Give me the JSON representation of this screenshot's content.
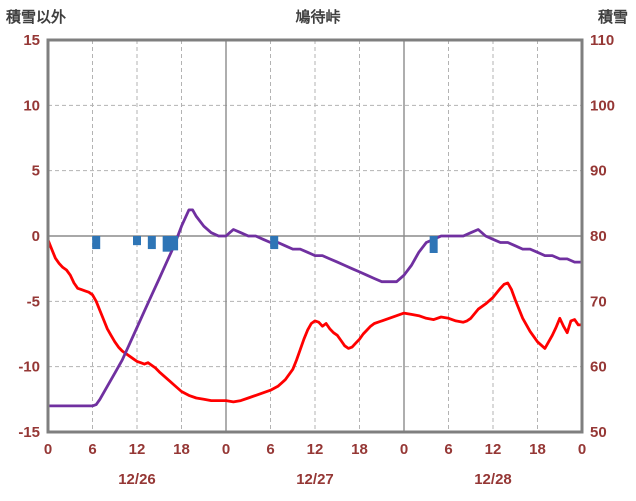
{
  "chart_data": {
    "type": "line",
    "title": "鳩待峠",
    "left_axis": {
      "label": "積雪以外",
      "min": -15,
      "max": 15,
      "ticks": [
        "15",
        "10",
        "5",
        "0",
        "-5",
        "-10",
        "-15"
      ],
      "grid_values": [
        10,
        5,
        0,
        -5,
        -10
      ]
    },
    "right_axis": {
      "label": "積雪",
      "min": 50,
      "max": 110,
      "ticks": [
        "110",
        "100",
        "90",
        "80",
        "70",
        "60",
        "50"
      ]
    },
    "x_axis": {
      "hours_total": 72,
      "tick_interval": 6,
      "tick_labels": [
        "0",
        "6",
        "12",
        "18",
        "0",
        "6",
        "12",
        "18",
        "0",
        "6",
        "12",
        "18",
        "0"
      ],
      "date_labels": [
        "12/26",
        "12/27",
        "12/28"
      ]
    },
    "colors": {
      "temperature": "#ff0000",
      "snow_depth": "#7030a0",
      "precipitation": "#2e75b6",
      "frame": "#7f7f7f",
      "grid_solid": "#8c8c8c",
      "grid_dashed": "#b3b3b3",
      "tick_text": "#953735"
    },
    "series": [
      {
        "name": "temperature",
        "type": "line",
        "axis": "left",
        "color": "#ff0000",
        "points": [
          [
            0,
            -0.3
          ],
          [
            0.5,
            -1.0
          ],
          [
            1,
            -1.7
          ],
          [
            1.5,
            -2.1
          ],
          [
            2,
            -2.4
          ],
          [
            2.5,
            -2.6
          ],
          [
            3,
            -3.0
          ],
          [
            3.5,
            -3.6
          ],
          [
            4,
            -4.0
          ],
          [
            4.5,
            -4.1
          ],
          [
            5,
            -4.2
          ],
          [
            5.5,
            -4.3
          ],
          [
            6,
            -4.5
          ],
          [
            6.5,
            -5.0
          ],
          [
            7,
            -5.7
          ],
          [
            7.5,
            -6.4
          ],
          [
            8,
            -7.1
          ],
          [
            8.5,
            -7.6
          ],
          [
            9,
            -8.1
          ],
          [
            9.5,
            -8.5
          ],
          [
            10,
            -8.8
          ],
          [
            10.5,
            -9.0
          ],
          [
            11,
            -9.2
          ],
          [
            11.5,
            -9.4
          ],
          [
            12,
            -9.6
          ],
          [
            12.5,
            -9.7
          ],
          [
            13,
            -9.8
          ],
          [
            13.5,
            -9.7
          ],
          [
            14,
            -9.9
          ],
          [
            14.5,
            -10.1
          ],
          [
            15,
            -10.4
          ],
          [
            16,
            -10.9
          ],
          [
            17,
            -11.4
          ],
          [
            18,
            -11.9
          ],
          [
            19,
            -12.2
          ],
          [
            20,
            -12.4
          ],
          [
            21,
            -12.5
          ],
          [
            22,
            -12.6
          ],
          [
            23,
            -12.6
          ],
          [
            24,
            -12.6
          ],
          [
            25,
            -12.7
          ],
          [
            26,
            -12.6
          ],
          [
            27,
            -12.4
          ],
          [
            28,
            -12.2
          ],
          [
            29,
            -12.0
          ],
          [
            30,
            -11.8
          ],
          [
            31,
            -11.5
          ],
          [
            32,
            -11.0
          ],
          [
            33,
            -10.2
          ],
          [
            33.5,
            -9.5
          ],
          [
            34,
            -8.7
          ],
          [
            34.5,
            -7.9
          ],
          [
            35,
            -7.2
          ],
          [
            35.5,
            -6.7
          ],
          [
            36,
            -6.5
          ],
          [
            36.5,
            -6.6
          ],
          [
            37,
            -6.9
          ],
          [
            37.5,
            -6.7
          ],
          [
            38,
            -7.1
          ],
          [
            38.5,
            -7.4
          ],
          [
            39,
            -7.6
          ],
          [
            39.5,
            -8.0
          ],
          [
            40,
            -8.4
          ],
          [
            40.5,
            -8.6
          ],
          [
            41,
            -8.5
          ],
          [
            41.5,
            -8.2
          ],
          [
            42,
            -7.9
          ],
          [
            42.5,
            -7.5
          ],
          [
            43,
            -7.2
          ],
          [
            43.5,
            -6.9
          ],
          [
            44,
            -6.7
          ],
          [
            45,
            -6.5
          ],
          [
            46,
            -6.3
          ],
          [
            47,
            -6.1
          ],
          [
            48,
            -5.9
          ],
          [
            49,
            -6.0
          ],
          [
            50,
            -6.1
          ],
          [
            51,
            -6.3
          ],
          [
            52,
            -6.4
          ],
          [
            53,
            -6.2
          ],
          [
            54,
            -6.3
          ],
          [
            55,
            -6.5
          ],
          [
            56,
            -6.6
          ],
          [
            56.5,
            -6.5
          ],
          [
            57,
            -6.3
          ],
          [
            58,
            -5.6
          ],
          [
            59,
            -5.2
          ],
          [
            60,
            -4.7
          ],
          [
            61,
            -4.0
          ],
          [
            61.5,
            -3.7
          ],
          [
            62,
            -3.6
          ],
          [
            62.5,
            -4.1
          ],
          [
            63,
            -4.9
          ],
          [
            64,
            -6.3
          ],
          [
            65,
            -7.3
          ],
          [
            66,
            -8.1
          ],
          [
            67,
            -8.6
          ],
          [
            68,
            -7.6
          ],
          [
            68.5,
            -7.0
          ],
          [
            69,
            -6.3
          ],
          [
            69.5,
            -6.9
          ],
          [
            70,
            -7.4
          ],
          [
            70.5,
            -6.5
          ],
          [
            71,
            -6.4
          ],
          [
            71.5,
            -6.8
          ],
          [
            72,
            -6.8
          ]
        ]
      },
      {
        "name": "snow-depth",
        "type": "line",
        "axis": "right",
        "color": "#7030a0",
        "points": [
          [
            0,
            54
          ],
          [
            6,
            54
          ],
          [
            6.5,
            54.2
          ],
          [
            7,
            55
          ],
          [
            8,
            57
          ],
          [
            9,
            59
          ],
          [
            10,
            61
          ],
          [
            11,
            63.5
          ],
          [
            12,
            66
          ],
          [
            13,
            68.5
          ],
          [
            14,
            71
          ],
          [
            15,
            73.5
          ],
          [
            16,
            76
          ],
          [
            17,
            78.5
          ],
          [
            18,
            81.5
          ],
          [
            19,
            84
          ],
          [
            19.5,
            84
          ],
          [
            20,
            83
          ],
          [
            21,
            81.5
          ],
          [
            22,
            80.5
          ],
          [
            23,
            80
          ],
          [
            24,
            80
          ],
          [
            24.5,
            80.5
          ],
          [
            25,
            81
          ],
          [
            26,
            80.5
          ],
          [
            27,
            80
          ],
          [
            28,
            80
          ],
          [
            29,
            79.5
          ],
          [
            30,
            79
          ],
          [
            31,
            79
          ],
          [
            32,
            78.5
          ],
          [
            33,
            78
          ],
          [
            34,
            78
          ],
          [
            35,
            77.5
          ],
          [
            36,
            77
          ],
          [
            37,
            77
          ],
          [
            38,
            76.5
          ],
          [
            39,
            76
          ],
          [
            40,
            75.5
          ],
          [
            41,
            75
          ],
          [
            42,
            74.5
          ],
          [
            43,
            74
          ],
          [
            44,
            73.5
          ],
          [
            45,
            73
          ],
          [
            46,
            73
          ],
          [
            47,
            73
          ],
          [
            48,
            74
          ],
          [
            49,
            75.5
          ],
          [
            50,
            77.5
          ],
          [
            51,
            79
          ],
          [
            52,
            79.5
          ],
          [
            53,
            80
          ],
          [
            54,
            80
          ],
          [
            55,
            80
          ],
          [
            56,
            80
          ],
          [
            57,
            80.5
          ],
          [
            58,
            81
          ],
          [
            59,
            80
          ],
          [
            60,
            79.5
          ],
          [
            61,
            79
          ],
          [
            62,
            79
          ],
          [
            63,
            78.5
          ],
          [
            64,
            78
          ],
          [
            65,
            78
          ],
          [
            66,
            77.5
          ],
          [
            67,
            77
          ],
          [
            68,
            77
          ],
          [
            69,
            76.5
          ],
          [
            70,
            76.5
          ],
          [
            71,
            76
          ],
          [
            72,
            76
          ]
        ]
      },
      {
        "name": "precipitation-bars",
        "type": "bar",
        "axis": "left",
        "color": "#2e75b6",
        "bars": [
          [
            6.5,
            -1.0
          ],
          [
            12,
            -0.7
          ],
          [
            14,
            -1.0
          ],
          [
            16,
            -1.2
          ],
          [
            17,
            -1.1
          ],
          [
            30.5,
            -1.0
          ],
          [
            52,
            -1.3
          ]
        ]
      }
    ]
  }
}
